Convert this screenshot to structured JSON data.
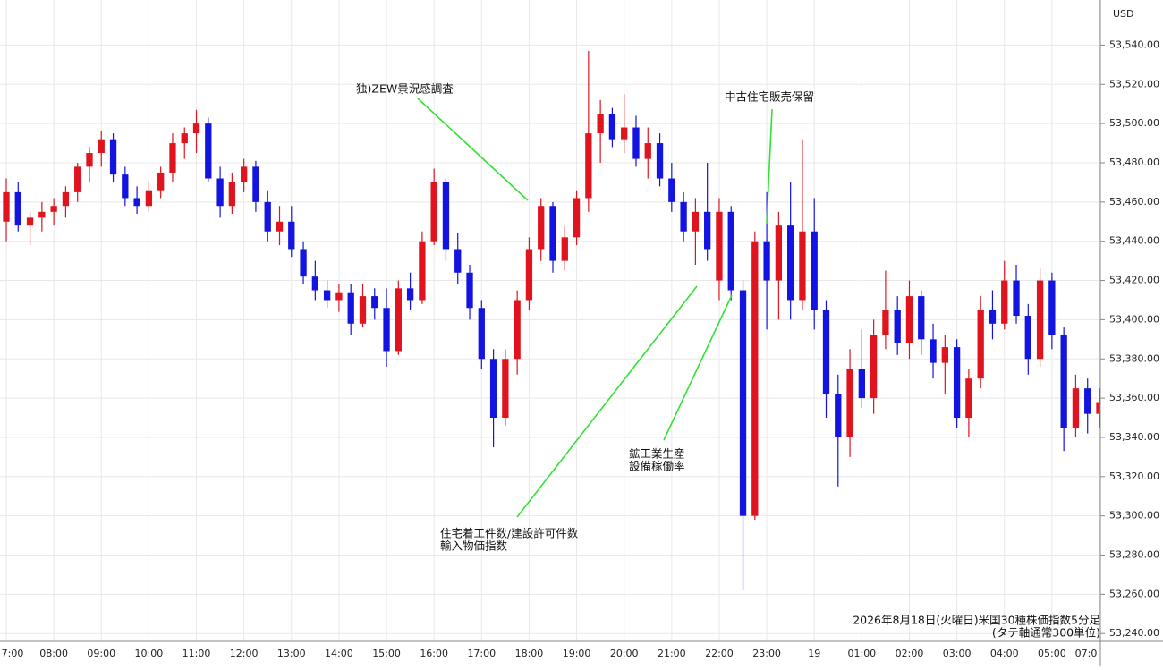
{
  "chart_data": {
    "type": "candlestick",
    "currency": "USD",
    "up_color": "#e0141e",
    "down_color": "#1414e0",
    "grid": true,
    "caption": [
      "2026年8月18日(火曜日)米国30種株価指数5分足",
      "(タテ軸通常300単位)"
    ],
    "annotations": [
      {
        "lines": [
          "独)ZEW景況感調査"
        ]
      },
      {
        "lines": [
          "中古住宅販売保留"
        ]
      },
      {
        "lines": [
          "鉱工業生産",
          "設備稼働率"
        ]
      },
      {
        "lines": [
          "住宅着工件数/建設許可件数",
          "輸入物価指数"
        ]
      }
    ],
    "ylim": [
      53236,
      53563
    ],
    "yticks": [
      {
        "value": 53240,
        "label": "53,240.00"
      },
      {
        "value": 53260,
        "label": "53,260.00"
      },
      {
        "value": 53280,
        "label": "53,280.00"
      },
      {
        "value": 53300,
        "label": "53,300.00"
      },
      {
        "value": 53320,
        "label": "53,320.00"
      },
      {
        "value": 53340,
        "label": "53,340.00"
      },
      {
        "value": 53360,
        "label": "53,360.00"
      },
      {
        "value": 53380,
        "label": "53,380.00"
      },
      {
        "value": 53400,
        "label": "53,400.00"
      },
      {
        "value": 53420,
        "label": "53,420.00"
      },
      {
        "value": 53440,
        "label": "53,440.00"
      },
      {
        "value": 53460,
        "label": "53,460.00"
      },
      {
        "value": 53480,
        "label": "53,480.00"
      },
      {
        "value": 53500,
        "label": "53,500.00"
      },
      {
        "value": 53520,
        "label": "53,520.00"
      },
      {
        "value": 53540,
        "label": "53,540.00"
      }
    ],
    "categories": [
      "7:00",
      null,
      null,
      null,
      "08:00",
      null,
      null,
      null,
      "09:00",
      null,
      null,
      null,
      "10:00",
      null,
      null,
      null,
      "11:00",
      null,
      null,
      null,
      "12:00",
      null,
      null,
      null,
      "13:00",
      null,
      null,
      null,
      "14:00",
      null,
      null,
      null,
      "15:00",
      null,
      null,
      null,
      "16:00",
      null,
      null,
      null,
      "17:00",
      null,
      null,
      null,
      "18:00",
      null,
      null,
      null,
      "19:00",
      null,
      null,
      null,
      "20:00",
      null,
      null,
      null,
      "21:00",
      null,
      null,
      null,
      "22:00",
      null,
      null,
      null,
      "23:00",
      null,
      null,
      null,
      "19",
      null,
      null,
      null,
      "01:00",
      null,
      null,
      null,
      "02:00",
      null,
      null,
      null,
      "03:00",
      null,
      null,
      null,
      "04:00",
      null,
      null,
      null,
      "05:00",
      null,
      null,
      null,
      "07:0"
    ],
    "open": [
      53450,
      53465,
      53448,
      53452,
      53455,
      53458,
      53465,
      53478,
      53485,
      53492,
      53474,
      53462,
      53458,
      53466,
      53475,
      53490,
      53495,
      53500,
      53472,
      53458,
      53470,
      53478,
      53460,
      53445,
      53450,
      53436,
      53422,
      53415,
      53410,
      53414,
      53398,
      53412,
      53406,
      53384,
      53416,
      53410,
      53440,
      53470,
      53436,
      53424,
      53406,
      53380,
      53350,
      53380,
      53410,
      53436,
      53458,
      53430,
      53442,
      53462,
      53495,
      53505,
      53492,
      53498,
      53482,
      53490,
      53472,
      53460,
      53445,
      53455,
      53420,
      53455,
      53415,
      53300,
      53440,
      53420,
      53448,
      53410,
      53445,
      53405,
      53362,
      53340,
      53375,
      53360,
      53392,
      53405,
      53388,
      53412,
      53390,
      53378,
      53386,
      53350,
      53370,
      53405,
      53398,
      53420,
      53402,
      53380,
      53420,
      53392,
      53345,
      53365,
      53352
    ],
    "high": [
      53472,
      53470,
      53455,
      53460,
      53462,
      53468,
      53480,
      53488,
      53496,
      53495,
      53478,
      53468,
      53470,
      53478,
      53495,
      53498,
      53507,
      53503,
      53478,
      53475,
      53482,
      53481,
      53466,
      53458,
      53458,
      53440,
      53430,
      53420,
      53418,
      53418,
      53418,
      53416,
      53416,
      53420,
      53424,
      53445,
      53477,
      53472,
      53444,
      53428,
      53410,
      53385,
      53385,
      53415,
      53442,
      53462,
      53460,
      53448,
      53466,
      53537,
      53512,
      53508,
      53515,
      53504,
      53498,
      53495,
      53480,
      53465,
      53462,
      53480,
      53462,
      53458,
      53420,
      53445,
      53465,
      53455,
      53470,
      53492,
      53462,
      53410,
      53372,
      53385,
      53395,
      53400,
      53425,
      53412,
      53420,
      53415,
      53398,
      53392,
      53390,
      53375,
      53412,
      53415,
      53430,
      53428,
      53408,
      53426,
      53424,
      53396,
      53372,
      53370,
      53365
    ],
    "low": [
      53440,
      53445,
      53438,
      53445,
      53448,
      53452,
      53460,
      53470,
      53478,
      53470,
      53458,
      53454,
      53455,
      53462,
      53470,
      53482,
      53485,
      53470,
      53452,
      53454,
      53465,
      53455,
      53440,
      53438,
      53432,
      53418,
      53410,
      53406,
      53404,
      53392,
      53396,
      53400,
      53376,
      53382,
      53405,
      53408,
      53438,
      53430,
      53418,
      53400,
      53375,
      53335,
      53346,
      53372,
      53405,
      53430,
      53424,
      53425,
      53438,
      53455,
      53480,
      53488,
      53485,
      53478,
      53472,
      53468,
      53455,
      53440,
      53428,
      53430,
      53410,
      53410,
      53262,
      53298,
      53395,
      53400,
      53400,
      53405,
      53395,
      53350,
      53315,
      53330,
      53355,
      53352,
      53385,
      53382,
      53380,
      53382,
      53370,
      53362,
      53345,
      53340,
      53365,
      53390,
      53395,
      53398,
      53372,
      53376,
      53385,
      53333,
      53340,
      53342,
      53345
    ],
    "close": [
      53465,
      53448,
      53452,
      53455,
      53458,
      53465,
      53478,
      53485,
      53492,
      53474,
      53462,
      53458,
      53466,
      53475,
      53490,
      53495,
      53500,
      53472,
      53458,
      53470,
      53478,
      53460,
      53445,
      53450,
      53436,
      53422,
      53415,
      53410,
      53414,
      53398,
      53412,
      53406,
      53384,
      53416,
      53410,
      53440,
      53470,
      53436,
      53424,
      53406,
      53380,
      53350,
      53380,
      53410,
      53436,
      53458,
      53430,
      53442,
      53462,
      53495,
      53505,
      53492,
      53498,
      53482,
      53490,
      53472,
      53460,
      53445,
      53455,
      53436,
      53455,
      53415,
      53300,
      53440,
      53420,
      53448,
      53410,
      53445,
      53405,
      53362,
      53340,
      53375,
      53360,
      53392,
      53405,
      53388,
      53412,
      53390,
      53378,
      53386,
      53350,
      53370,
      53405,
      53398,
      53420,
      53402,
      53380,
      53420,
      53392,
      53345,
      53365,
      53352,
      53358
    ]
  }
}
